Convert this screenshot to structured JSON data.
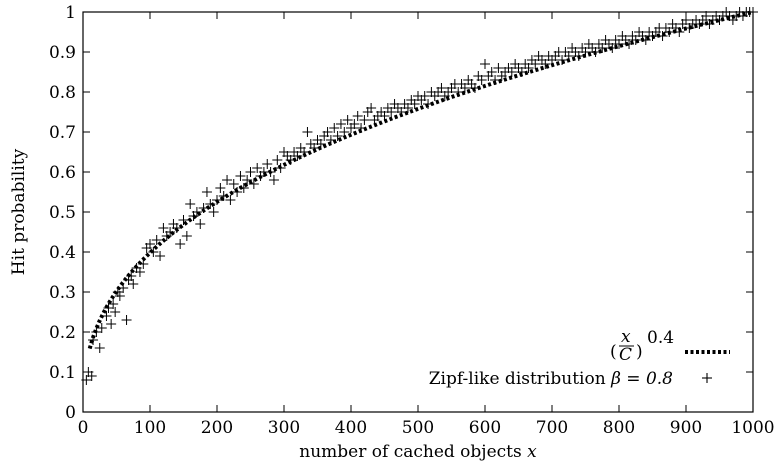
{
  "chart_data": {
    "type": "scatter",
    "xlabel": "number of cached objects",
    "xlabel_var": "x",
    "ylabel": "Hit probability",
    "xlim": [
      0,
      1000
    ],
    "ylim": [
      0,
      1
    ],
    "xticks": [
      "0",
      "100",
      "200",
      "300",
      "400",
      "500",
      "600",
      "700",
      "800",
      "900",
      "1000"
    ],
    "yticks": [
      "0",
      "0.1",
      "0.2",
      "0.3",
      "0.4",
      "0.5",
      "0.6",
      "0.7",
      "0.8",
      "0.9",
      "1"
    ],
    "grid": false,
    "legend_position": "bottom-right",
    "series": [
      {
        "name": "(x/C)^0.4",
        "legend_formula": {
          "numerator": "x",
          "denominator": "C",
          "exponent": "0.4"
        },
        "style": "dotted-line",
        "formula": "y = (x/1000)^0.4",
        "x_range": [
          10,
          1000
        ],
        "color": "#000000"
      },
      {
        "name_text": "Zipf-like distribution",
        "name_math": "β = 0.8",
        "style": "plus-markers",
        "color": "#000000",
        "points": [
          [
            5,
            0.08
          ],
          [
            8,
            0.1
          ],
          [
            13,
            0.09
          ],
          [
            15,
            0.18
          ],
          [
            20,
            0.2
          ],
          [
            25,
            0.16
          ],
          [
            28,
            0.21
          ],
          [
            35,
            0.24
          ],
          [
            38,
            0.26
          ],
          [
            42,
            0.22
          ],
          [
            45,
            0.27
          ],
          [
            48,
            0.25
          ],
          [
            52,
            0.3
          ],
          [
            55,
            0.29
          ],
          [
            60,
            0.31
          ],
          [
            65,
            0.23
          ],
          [
            68,
            0.33
          ],
          [
            72,
            0.34
          ],
          [
            75,
            0.32
          ],
          [
            80,
            0.36
          ],
          [
            85,
            0.35
          ],
          [
            90,
            0.37
          ],
          [
            95,
            0.41
          ],
          [
            100,
            0.42
          ],
          [
            105,
            0.4
          ],
          [
            110,
            0.43
          ],
          [
            115,
            0.39
          ],
          [
            120,
            0.46
          ],
          [
            125,
            0.44
          ],
          [
            130,
            0.45
          ],
          [
            135,
            0.47
          ],
          [
            140,
            0.46
          ],
          [
            145,
            0.42
          ],
          [
            150,
            0.48
          ],
          [
            155,
            0.44
          ],
          [
            160,
            0.52
          ],
          [
            165,
            0.49
          ],
          [
            170,
            0.5
          ],
          [
            175,
            0.47
          ],
          [
            180,
            0.51
          ],
          [
            185,
            0.55
          ],
          [
            190,
            0.52
          ],
          [
            195,
            0.5
          ],
          [
            200,
            0.53
          ],
          [
            205,
            0.56
          ],
          [
            210,
            0.54
          ],
          [
            215,
            0.58
          ],
          [
            220,
            0.53
          ],
          [
            225,
            0.57
          ],
          [
            230,
            0.55
          ],
          [
            235,
            0.59
          ],
          [
            240,
            0.56
          ],
          [
            245,
            0.58
          ],
          [
            250,
            0.6
          ],
          [
            255,
            0.57
          ],
          [
            260,
            0.61
          ],
          [
            265,
            0.59
          ],
          [
            270,
            0.6
          ],
          [
            275,
            0.62
          ],
          [
            280,
            0.6
          ],
          [
            285,
            0.58
          ],
          [
            290,
            0.63
          ],
          [
            295,
            0.61
          ],
          [
            300,
            0.65
          ],
          [
            305,
            0.64
          ],
          [
            310,
            0.63
          ],
          [
            315,
            0.65
          ],
          [
            320,
            0.64
          ],
          [
            325,
            0.66
          ],
          [
            330,
            0.65
          ],
          [
            335,
            0.7
          ],
          [
            340,
            0.67
          ],
          [
            345,
            0.66
          ],
          [
            350,
            0.68
          ],
          [
            355,
            0.67
          ],
          [
            360,
            0.69
          ],
          [
            365,
            0.7
          ],
          [
            370,
            0.68
          ],
          [
            375,
            0.71
          ],
          [
            380,
            0.69
          ],
          [
            385,
            0.72
          ],
          [
            390,
            0.7
          ],
          [
            395,
            0.73
          ],
          [
            400,
            0.71
          ],
          [
            405,
            0.72
          ],
          [
            410,
            0.74
          ],
          [
            415,
            0.71
          ],
          [
            420,
            0.73
          ],
          [
            425,
            0.75
          ],
          [
            430,
            0.76
          ],
          [
            435,
            0.73
          ],
          [
            440,
            0.74
          ],
          [
            445,
            0.75
          ],
          [
            450,
            0.74
          ],
          [
            455,
            0.76
          ],
          [
            460,
            0.75
          ],
          [
            465,
            0.77
          ],
          [
            470,
            0.76
          ],
          [
            475,
            0.75
          ],
          [
            480,
            0.77
          ],
          [
            485,
            0.76
          ],
          [
            490,
            0.78
          ],
          [
            495,
            0.77
          ],
          [
            500,
            0.79
          ],
          [
            505,
            0.78
          ],
          [
            510,
            0.79
          ],
          [
            515,
            0.77
          ],
          [
            520,
            0.8
          ],
          [
            525,
            0.79
          ],
          [
            530,
            0.8
          ],
          [
            535,
            0.81
          ],
          [
            540,
            0.79
          ],
          [
            545,
            0.8
          ],
          [
            550,
            0.81
          ],
          [
            555,
            0.82
          ],
          [
            560,
            0.8
          ],
          [
            565,
            0.82
          ],
          [
            570,
            0.81
          ],
          [
            575,
            0.83
          ],
          [
            580,
            0.82
          ],
          [
            585,
            0.81
          ],
          [
            590,
            0.84
          ],
          [
            595,
            0.83
          ],
          [
            600,
            0.87
          ],
          [
            605,
            0.84
          ],
          [
            610,
            0.85
          ],
          [
            615,
            0.83
          ],
          [
            620,
            0.86
          ],
          [
            625,
            0.84
          ],
          [
            630,
            0.85
          ],
          [
            635,
            0.86
          ],
          [
            640,
            0.85
          ],
          [
            645,
            0.87
          ],
          [
            650,
            0.86
          ],
          [
            655,
            0.85
          ],
          [
            660,
            0.87
          ],
          [
            665,
            0.86
          ],
          [
            670,
            0.88
          ],
          [
            675,
            0.87
          ],
          [
            680,
            0.89
          ],
          [
            685,
            0.88
          ],
          [
            690,
            0.87
          ],
          [
            695,
            0.89
          ],
          [
            700,
            0.88
          ],
          [
            705,
            0.89
          ],
          [
            710,
            0.9
          ],
          [
            715,
            0.88
          ],
          [
            720,
            0.9
          ],
          [
            725,
            0.89
          ],
          [
            730,
            0.91
          ],
          [
            735,
            0.9
          ],
          [
            740,
            0.89
          ],
          [
            745,
            0.91
          ],
          [
            750,
            0.9
          ],
          [
            755,
            0.92
          ],
          [
            760,
            0.91
          ],
          [
            765,
            0.9
          ],
          [
            770,
            0.92
          ],
          [
            775,
            0.91
          ],
          [
            780,
            0.93
          ],
          [
            785,
            0.92
          ],
          [
            790,
            0.91
          ],
          [
            795,
            0.93
          ],
          [
            800,
            0.92
          ],
          [
            805,
            0.94
          ],
          [
            810,
            0.93
          ],
          [
            815,
            0.92
          ],
          [
            820,
            0.94
          ],
          [
            825,
            0.93
          ],
          [
            830,
            0.95
          ],
          [
            835,
            0.94
          ],
          [
            840,
            0.93
          ],
          [
            845,
            0.95
          ],
          [
            850,
            0.94
          ],
          [
            855,
            0.95
          ],
          [
            860,
            0.96
          ],
          [
            865,
            0.94
          ],
          [
            870,
            0.96
          ],
          [
            875,
            0.95
          ],
          [
            880,
            0.97
          ],
          [
            885,
            0.96
          ],
          [
            890,
            0.95
          ],
          [
            895,
            0.97
          ],
          [
            900,
            0.98
          ],
          [
            905,
            0.96
          ],
          [
            910,
            0.97
          ],
          [
            915,
            0.98
          ],
          [
            920,
            0.97
          ],
          [
            925,
            0.98
          ],
          [
            930,
            0.99
          ],
          [
            935,
            0.97
          ],
          [
            940,
            0.98
          ],
          [
            945,
            0.99
          ],
          [
            950,
            0.98
          ],
          [
            955,
            0.99
          ],
          [
            960,
            1.0
          ],
          [
            965,
            0.99
          ],
          [
            970,
            0.98
          ],
          [
            975,
            0.99
          ],
          [
            980,
            1.0
          ],
          [
            985,
            0.99
          ],
          [
            990,
            1.0
          ],
          [
            995,
            1.0
          ],
          [
            1000,
            1.0
          ]
        ]
      }
    ]
  }
}
